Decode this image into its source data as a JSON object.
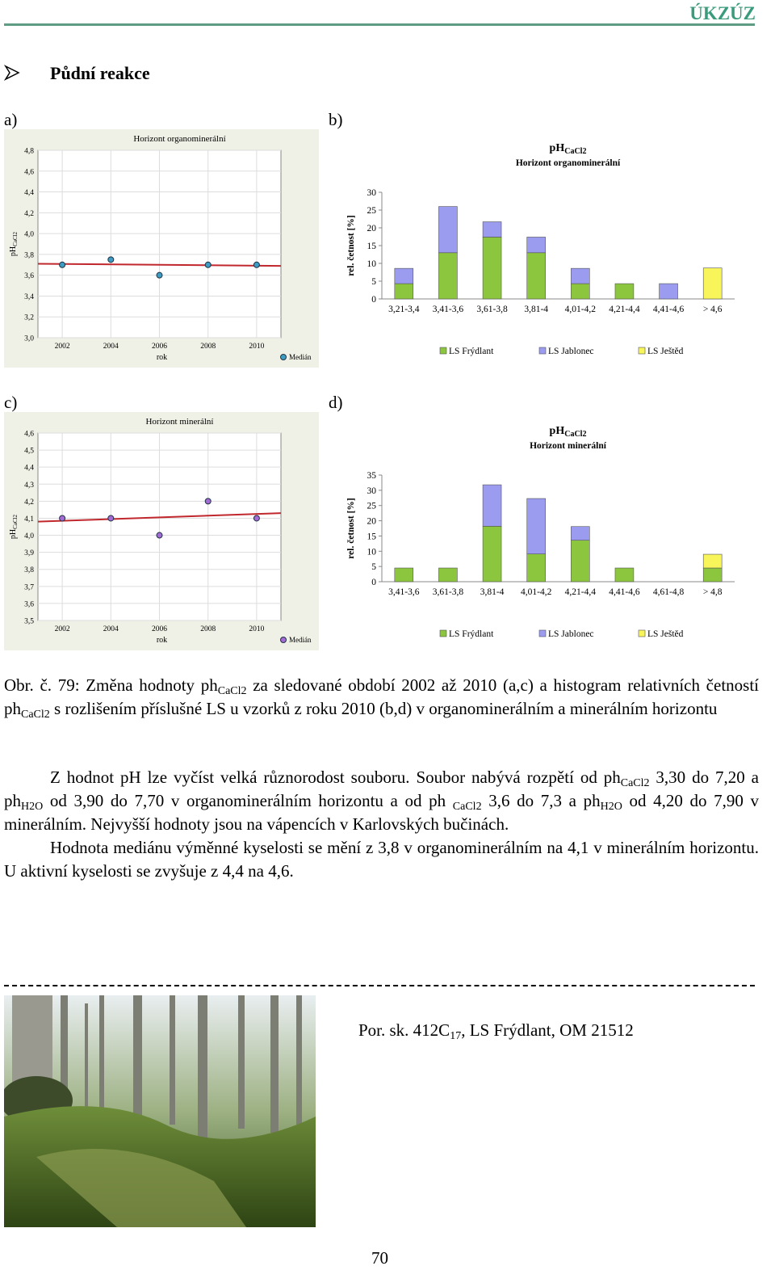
{
  "header": {
    "title": "ÚKZÚZ"
  },
  "section": {
    "title": "Půdní reakce"
  },
  "panel_labels": [
    "a)",
    "b)",
    "c)",
    "d)"
  ],
  "chart_data": [
    {
      "type": "scatter",
      "title": "Horizont organominerální",
      "ylabel": "pH",
      "ylabel_sub": "CaCl2",
      "xlabel": "rok",
      "x": [
        2002,
        2004,
        2006,
        2008,
        2010
      ],
      "series": [
        {
          "name": "Medián",
          "color": "#3b9cc4",
          "values": [
            3.7,
            3.75,
            3.6,
            3.7,
            3.7
          ]
        }
      ],
      "trend_line": {
        "color": "#c0282d",
        "x": [
          2001,
          2011
        ],
        "values": [
          3.71,
          3.69
        ]
      },
      "xlim": [
        2001,
        2011
      ],
      "xticks": [
        2002,
        2004,
        2006,
        2008,
        2010
      ],
      "ylim": [
        3.0,
        4.8
      ],
      "yticks": [
        {
          "value": 3.0,
          "label": "3,0"
        },
        {
          "value": 3.2,
          "label": "3,2"
        },
        {
          "value": 3.4,
          "label": "3,4"
        },
        {
          "value": 3.6,
          "label": "3,6"
        },
        {
          "value": 3.8,
          "label": "3,8"
        },
        {
          "value": 4.0,
          "label": "4,0"
        },
        {
          "value": 4.2,
          "label": "4,2"
        },
        {
          "value": 4.4,
          "label": "4,4"
        },
        {
          "value": 4.6,
          "label": "4,6"
        },
        {
          "value": 4.8,
          "label": "4,8"
        }
      ],
      "grid": true
    },
    {
      "type": "stacked_bar",
      "title": "pH",
      "title_sub": "CaCl2",
      "subtitle": "Horizont  organominerální",
      "ylabel": "rel. četnost [%]",
      "categories": [
        "3,21-3,4",
        "3,41-3,6",
        "3,61-3,8",
        "3,81-4",
        "4,01-4,2",
        "4,21-4,4",
        "4,41-4,6",
        "> 4,6"
      ],
      "series": [
        {
          "name": "LS Frýdlant",
          "color": "#8cc63e",
          "values": [
            4.3,
            13,
            17.4,
            13,
            4.3,
            4.3,
            0,
            0
          ]
        },
        {
          "name": "LS Jablonec",
          "color": "#9b9bf0",
          "values": [
            4.3,
            13,
            4.3,
            4.4,
            4.3,
            0,
            4.3,
            0
          ]
        },
        {
          "name": "LS Ještěd",
          "color": "#f7f55a",
          "values": [
            0,
            0,
            0,
            0,
            0,
            0,
            0,
            8.7
          ]
        }
      ],
      "ylim": [
        0,
        30
      ],
      "yticks": [
        0,
        5,
        10,
        15,
        20,
        25,
        30
      ],
      "grid": false
    },
    {
      "type": "scatter",
      "title": "Horizont minerální",
      "ylabel": "pH",
      "ylabel_sub": "CaCl2",
      "xlabel": "rok",
      "x": [
        2002,
        2004,
        2006,
        2008,
        2010
      ],
      "series": [
        {
          "name": "Medián",
          "color": "#a46bd6",
          "values": [
            4.1,
            4.1,
            4.0,
            4.2,
            4.1
          ]
        }
      ],
      "trend_line": {
        "color": "#c0282d",
        "x": [
          2001,
          2011
        ],
        "values": [
          4.08,
          4.13
        ]
      },
      "xlim": [
        2001,
        2011
      ],
      "xticks": [
        2002,
        2004,
        2006,
        2008,
        2010
      ],
      "ylim": [
        3.5,
        4.6
      ],
      "yticks": [
        {
          "value": 3.5,
          "label": "3,5"
        },
        {
          "value": 3.6,
          "label": "3,6"
        },
        {
          "value": 3.7,
          "label": "3,7"
        },
        {
          "value": 3.8,
          "label": "3,8"
        },
        {
          "value": 3.9,
          "label": "3,9"
        },
        {
          "value": 4.0,
          "label": "4,0"
        },
        {
          "value": 4.1,
          "label": "4,1"
        },
        {
          "value": 4.2,
          "label": "4,2"
        },
        {
          "value": 4.3,
          "label": "4,3"
        },
        {
          "value": 4.4,
          "label": "4,4"
        },
        {
          "value": 4.5,
          "label": "4,5"
        },
        {
          "value": 4.6,
          "label": "4,6"
        }
      ],
      "grid": true
    },
    {
      "type": "stacked_bar",
      "title": "pH",
      "title_sub": "CaCl2",
      "subtitle": "Horizont  minerální",
      "ylabel": "rel. četnost [%]",
      "categories": [
        "3,41-3,6",
        "3,61-3,8",
        "3,81-4",
        "4,01-4,2",
        "4,21-4,4",
        "4,41-4,6",
        "4,61-4,8",
        "> 4,8"
      ],
      "series": [
        {
          "name": "LS Frýdlant",
          "color": "#8cc63e",
          "values": [
            4.5,
            4.5,
            18.2,
            9.1,
            13.6,
            4.5,
            0,
            4.5
          ]
        },
        {
          "name": "LS Jablonec",
          "color": "#9b9bf0",
          "values": [
            0,
            0,
            13.6,
            18.2,
            4.5,
            0,
            0,
            0
          ]
        },
        {
          "name": "LS Ještěd",
          "color": "#f7f55a",
          "values": [
            0,
            0,
            0,
            0,
            0,
            0,
            0,
            4.5
          ]
        }
      ],
      "ylim": [
        0,
        35
      ],
      "yticks": [
        0,
        5,
        10,
        15,
        20,
        25,
        30,
        35
      ],
      "grid": false
    }
  ],
  "caption": [
    "Obr. č. 79: Změna hodnoty ph",
    "CaCl2",
    " za sledované období 2002 až 2010 (a,c) a histogram relativních četností ph",
    "CaCl2",
    " s rozlišením příslušné LS u vzorků z roku 2010 (b,d) v organominerálním a minerálním horizontu"
  ],
  "paragraphs": [
    [
      "Z hodnot pH lze vyčíst velká různorodost souboru. Soubor nabývá rozpětí od ph",
      "CaCl2",
      " 3,30 do 7,20 a ph",
      "H2O",
      " od 3,90 do 7,70 v organominerálním horizontu a od ph ",
      "CaCl2",
      " 3,6 do 7,3 a ph",
      "H2O",
      " od 4,20 do 7,90 v minerálním. Nejvyšší hodnoty jsou na vápencích v Karlovských bučinách."
    ],
    [
      "Hodnota mediánu výměnné kyselosti se mění z 3,8 v organominerálním na 4,1 v minerálním horizontu. U aktivní kyselosti se zvyšuje z 4,4 na 4,6."
    ]
  ],
  "photo_caption": [
    "Por. sk. 412C",
    "17",
    ", LS Frýdlant, OM 21512"
  ],
  "footer": {
    "page_number": "70"
  }
}
